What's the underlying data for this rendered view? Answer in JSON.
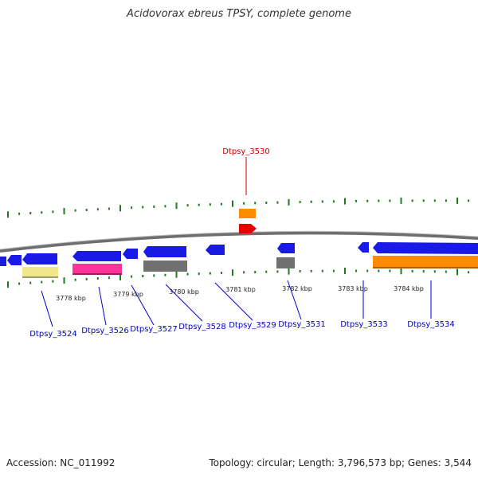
{
  "title": "Acidovorax ebreus TPSY, complete genome",
  "footer": {
    "accession": "Accession: NC_011992",
    "summary": "Topology: circular; Length: 3,796,573 bp; Genes: 3,544"
  },
  "highlight_gene": "Dtpsy_3530",
  "kbp_ticks": [
    "3778 kbp",
    "3779 kbp",
    "3780 kbp",
    "3781 kbp",
    "3782 kbp",
    "3783 kbp",
    "3784 kbp"
  ],
  "gene_labels": [
    "Dtpsy_3524",
    "Dtpsy_3526",
    "Dtpsy_3527",
    "Dtpsy_3528",
    "Dtpsy_3529",
    "Dtpsy_3531",
    "Dtpsy_3533",
    "Dtpsy_3534"
  ],
  "colors": {
    "cds": "#1a1ae6",
    "highlight": "#cc0000",
    "label": "#0000cc",
    "tick": "#1f7a1f",
    "backbone": "#8a8a8a",
    "orange": "#ff8c00",
    "pink": "#ff3399",
    "yellow": "#f0e68c",
    "gray": "#707070"
  }
}
